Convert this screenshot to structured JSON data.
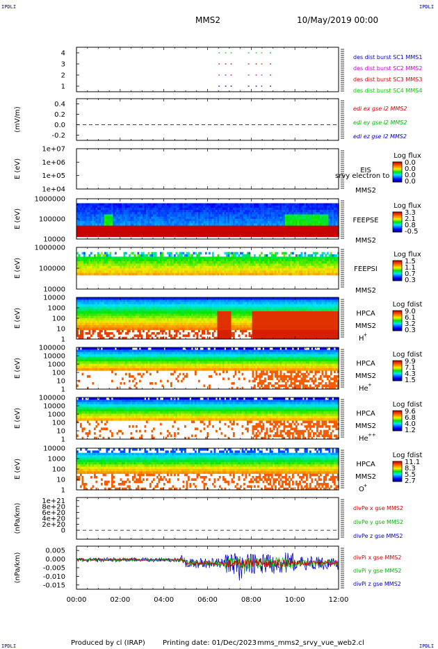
{
  "page": {
    "corner_label": "IPDLI",
    "title": "MMS2",
    "date": "10/May/2019 00:00",
    "footer": {
      "producer": "Produced by cl (IRAP)",
      "printing": "Printing date: 01/Dec/2023",
      "file": "mms_mms2_srvy_vue_web2.cl"
    }
  },
  "colors": {
    "mms1": "#0000cc",
    "mms2": "#cc00cc",
    "mms3": "#dd0000",
    "mms4": "#00cc00",
    "x": "#dd0000",
    "y": "#00bb00",
    "z": "#0000cc"
  },
  "chart_data": [
    {
      "id": "burst",
      "type": "scatter",
      "ylim": [
        0.5,
        4.5
      ],
      "yticks": [
        "1",
        "2",
        "3",
        "4"
      ],
      "ylabel": "",
      "series": [
        {
          "name": "des dist burst SC1 MMS1",
          "level": 1,
          "color": "#0000cc",
          "segments": [
            [
              6.5,
              6.6
            ],
            [
              6.8,
              7.2
            ],
            [
              7.85,
              8.05
            ],
            [
              8.2,
              8.5
            ],
            [
              8.85,
              9.0
            ]
          ]
        },
        {
          "name": "des dist burst SC2 MMS2",
          "level": 2,
          "color": "#cc00cc",
          "segments": [
            [
              6.5,
              6.6
            ],
            [
              6.8,
              7.2
            ],
            [
              7.85,
              8.05
            ],
            [
              8.2,
              8.5
            ],
            [
              8.85,
              9.0
            ]
          ]
        },
        {
          "name": "des dist burst SC3 MMS3",
          "level": 3,
          "color": "#dd0000",
          "segments": [
            [
              6.5,
              6.6
            ],
            [
              6.8,
              7.2
            ],
            [
              7.85,
              8.05
            ],
            [
              8.2,
              8.5
            ],
            [
              8.85,
              9.0
            ]
          ]
        },
        {
          "name": "des dist burst SC4 MMS4",
          "level": 4,
          "color": "#00cc00",
          "segments": [
            [
              6.5,
              6.6
            ],
            [
              6.8,
              7.2
            ],
            [
              7.85,
              8.05
            ],
            [
              8.2,
              8.5
            ],
            [
              8.85,
              9.0
            ]
          ]
        }
      ]
    },
    {
      "id": "edi",
      "type": "line",
      "ylim": [
        -0.3,
        0.5
      ],
      "yticks": [
        "-0.2",
        "0.0",
        "0.2",
        "0.4"
      ],
      "ylabel": "(mV/m)",
      "series": [
        {
          "name": "edi ex gse l2 MMS2",
          "color": "#dd0000"
        },
        {
          "name": "edi ey gse l2 MMS2",
          "color": "#00bb00"
        },
        {
          "name": "edi ez gse l2 MMS2",
          "color": "#0000cc"
        }
      ]
    },
    {
      "id": "eis",
      "type": "heatmap",
      "ylabel": "E (eV)",
      "yticks": [
        "1e+04",
        "1e+05",
        "1e+06",
        "1e+07"
      ],
      "labels": [
        "EIS",
        "MMS2"
      ],
      "overlay": "srvy electron to",
      "colorbar": {
        "title": "Log flux",
        "ticks": [
          "0.0",
          "0.0",
          "0.0",
          "0.0"
        ]
      }
    },
    {
      "id": "feepse",
      "type": "heatmap",
      "ylabel": "E (eV)",
      "yticks": [
        "10000",
        "100000",
        "1000000"
      ],
      "labels": [
        "FEEPSE",
        "MMS2"
      ],
      "colorbar": {
        "title": "Log flux",
        "ticks": [
          "3.3",
          "2.1",
          "0.8",
          "-0.5"
        ]
      }
    },
    {
      "id": "feepsi",
      "type": "heatmap",
      "ylabel": "E (eV)",
      "yticks": [
        "10000",
        "100000",
        "1000000"
      ],
      "labels": [
        "FEEPSI",
        "MMS2"
      ],
      "colorbar": {
        "title": "Log flux",
        "ticks": [
          "1.5",
          "1.1",
          "0.7",
          "0.3"
        ]
      }
    },
    {
      "id": "hpca_h",
      "type": "heatmap",
      "ylabel": "E (eV)",
      "yticks": [
        "1",
        "10",
        "100",
        "1000",
        "10000"
      ],
      "labels": [
        "HPCA",
        "MMS2"
      ],
      "species": {
        "base": "H",
        "sup": "+"
      },
      "colorbar": {
        "title": "Log fdist",
        "ticks": [
          "9.0",
          "6.1",
          "3.2",
          "0.3"
        ]
      }
    },
    {
      "id": "hpca_he",
      "type": "heatmap",
      "ylabel": "E (eV)",
      "yticks": [
        "1",
        "10",
        "100",
        "1000",
        "10000",
        "100000"
      ],
      "labels": [
        "HPCA",
        "MMS2"
      ],
      "species": {
        "base": "He",
        "sup": "+"
      },
      "colorbar": {
        "title": "Log fdist",
        "ticks": [
          "9.9",
          "7.1",
          "4.3",
          "1.5"
        ]
      }
    },
    {
      "id": "hpca_hepp",
      "type": "heatmap",
      "ylabel": "E (eV)",
      "yticks": [
        "1",
        "10",
        "100",
        "1000",
        "10000",
        "100000"
      ],
      "labels": [
        "HPCA",
        "MMS2"
      ],
      "species": {
        "base": "He",
        "sup": "++"
      },
      "colorbar": {
        "title": "Log fdist",
        "ticks": [
          "9.6",
          "6.8",
          "4.0",
          "1.2"
        ]
      }
    },
    {
      "id": "hpca_o",
      "type": "heatmap",
      "ylabel": "E (eV)",
      "yticks": [
        "1",
        "10",
        "100",
        "1000",
        "10000"
      ],
      "labels": [
        "HPCA",
        "MMS2"
      ],
      "species": {
        "base": "O",
        "sup": "+"
      },
      "colorbar": {
        "title": "Log fdist",
        "ticks": [
          "11.1",
          "8.3",
          "5.5",
          "2.7"
        ]
      }
    },
    {
      "id": "divpe",
      "type": "line",
      "ylim": [
        -3e+20,
        1.1e+21
      ],
      "yticks": [
        "0",
        "2e+20",
        "4e+20",
        "6e+20",
        "8e+20",
        "1e+21"
      ],
      "ylabel": "(nPa/km)",
      "series": [
        {
          "name": "divPe x gse MMS2",
          "color": "#dd0000"
        },
        {
          "name": "divPe y gse MMS2",
          "color": "#00bb00"
        },
        {
          "name": "divPe z gse MMS2",
          "color": "#0000cc"
        }
      ]
    },
    {
      "id": "divpi",
      "type": "line",
      "ylim": [
        -0.0175,
        0.0075
      ],
      "yticks": [
        "-0.015",
        "-0.010",
        "-0.005",
        "0.000",
        "0.005"
      ],
      "ylabel": "(nPa/km)",
      "series": [
        {
          "name": "divPi x gse MMS2",
          "color": "#dd0000"
        },
        {
          "name": "divPi y gse MMS2",
          "color": "#00bb00"
        },
        {
          "name": "divPi z gse MMS2",
          "color": "#0000cc"
        }
      ]
    }
  ],
  "x_axis": {
    "ticks": [
      "00:00",
      "02:00",
      "04:00",
      "06:00",
      "08:00",
      "10:00",
      "12:00"
    ],
    "xlim": [
      "00:00",
      "12:00"
    ]
  }
}
